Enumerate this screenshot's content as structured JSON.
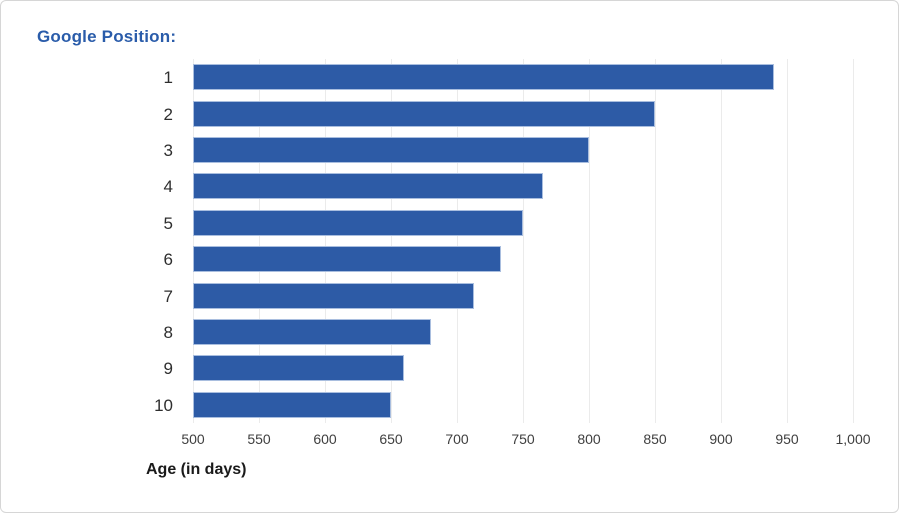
{
  "title": {
    "text": "Google Position:",
    "color": "#2a5caa"
  },
  "x_axis": {
    "label": "Age (in days)"
  },
  "chart_data": {
    "type": "bar",
    "orientation": "horizontal",
    "title": "Google Position:",
    "xlabel": "Age (in days)",
    "ylabel": "Google Position",
    "categories": [
      "1",
      "2",
      "3",
      "4",
      "5",
      "6",
      "7",
      "8",
      "9",
      "10"
    ],
    "values": [
      940,
      850,
      800,
      765,
      750,
      733,
      713,
      680,
      660,
      650
    ],
    "xlim": [
      500,
      1000
    ],
    "xticks": [
      500,
      550,
      600,
      650,
      700,
      750,
      800,
      850,
      900,
      950,
      1000
    ],
    "xtick_labels": [
      "500",
      "550",
      "600",
      "650",
      "700",
      "750",
      "800",
      "850",
      "900",
      "950",
      "1,000"
    ],
    "grid": true,
    "legend": "none",
    "bar_color": "#2d5ba6",
    "bar_border_color": "#a9bedf",
    "gridline_color": "#ebebeb"
  }
}
